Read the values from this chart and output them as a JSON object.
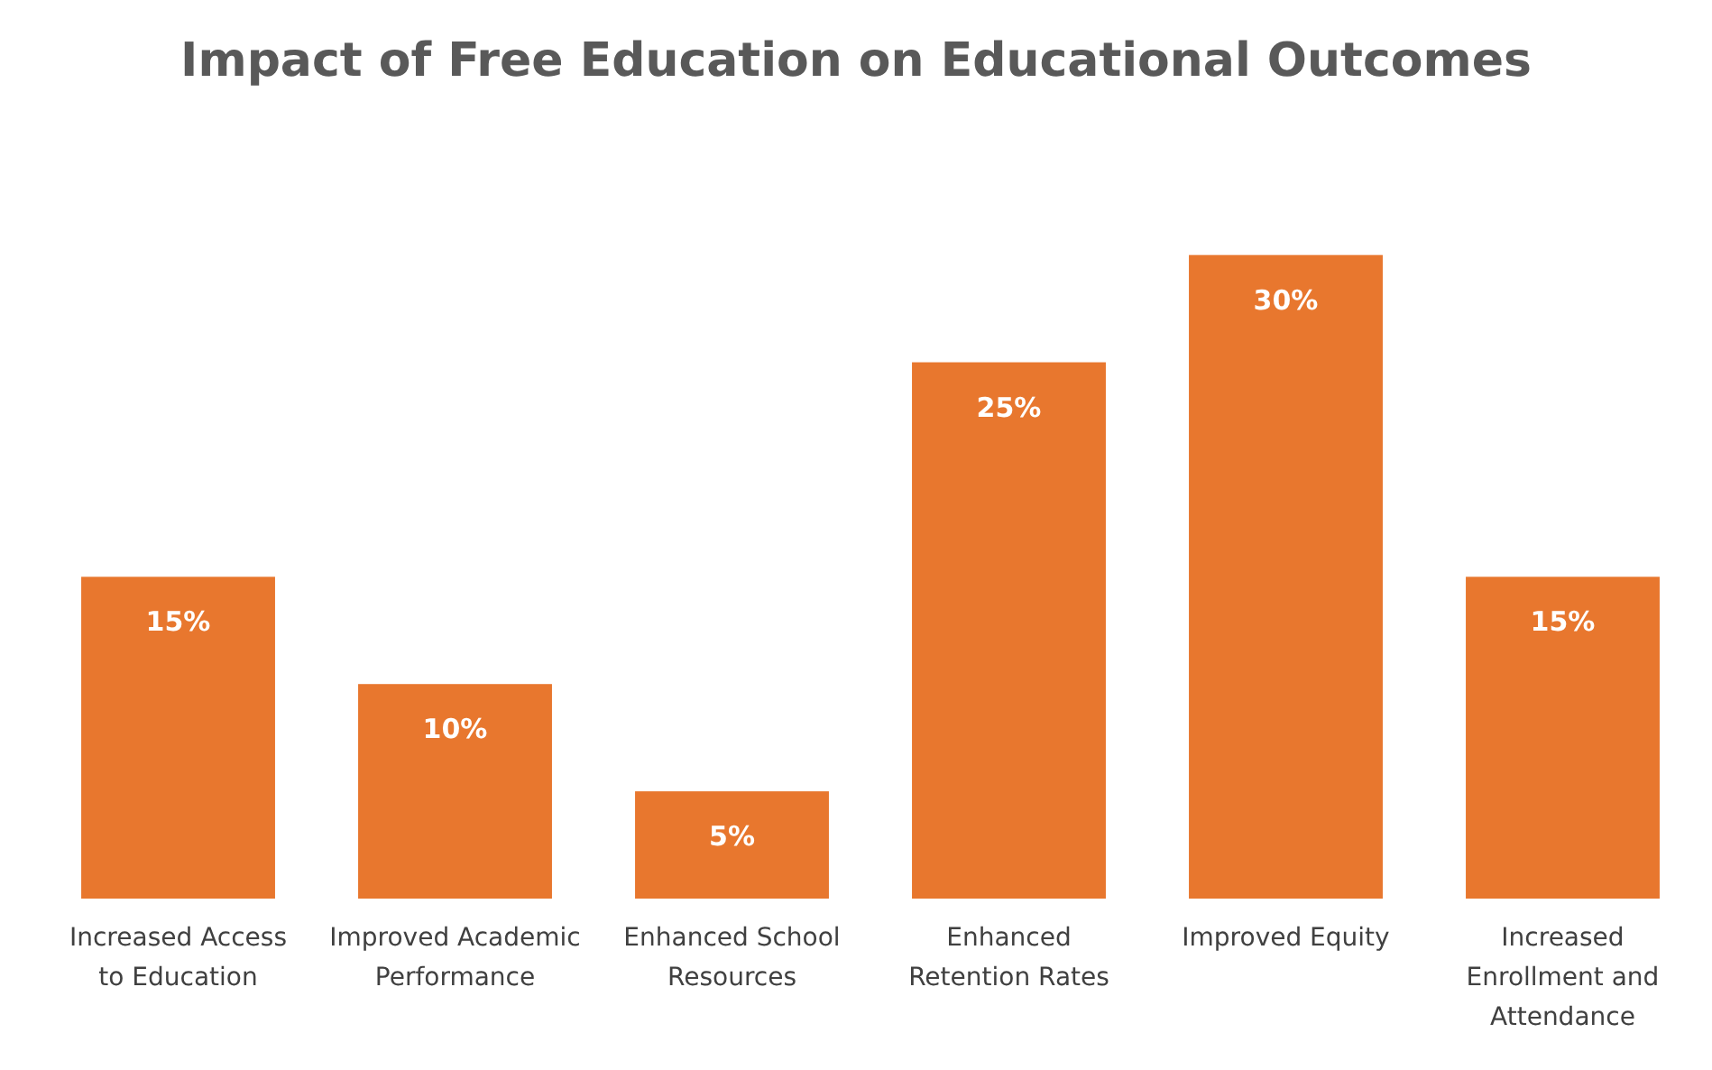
{
  "chart_data": {
    "type": "bar",
    "title": "Impact of Free Education on Educational Outcomes",
    "categories": [
      "Increased Access to Education",
      "Improved Academic Performance",
      "Enhanced School Resources",
      "Enhanced Retention Rates",
      "Improved Equity",
      "Increased Enrollment and Attendance"
    ],
    "values": [
      15,
      10,
      5,
      25,
      30,
      15
    ],
    "value_labels": [
      "15%",
      "10%",
      "5%",
      "25%",
      "30%",
      "15%"
    ],
    "color": "#e8772e"
  }
}
